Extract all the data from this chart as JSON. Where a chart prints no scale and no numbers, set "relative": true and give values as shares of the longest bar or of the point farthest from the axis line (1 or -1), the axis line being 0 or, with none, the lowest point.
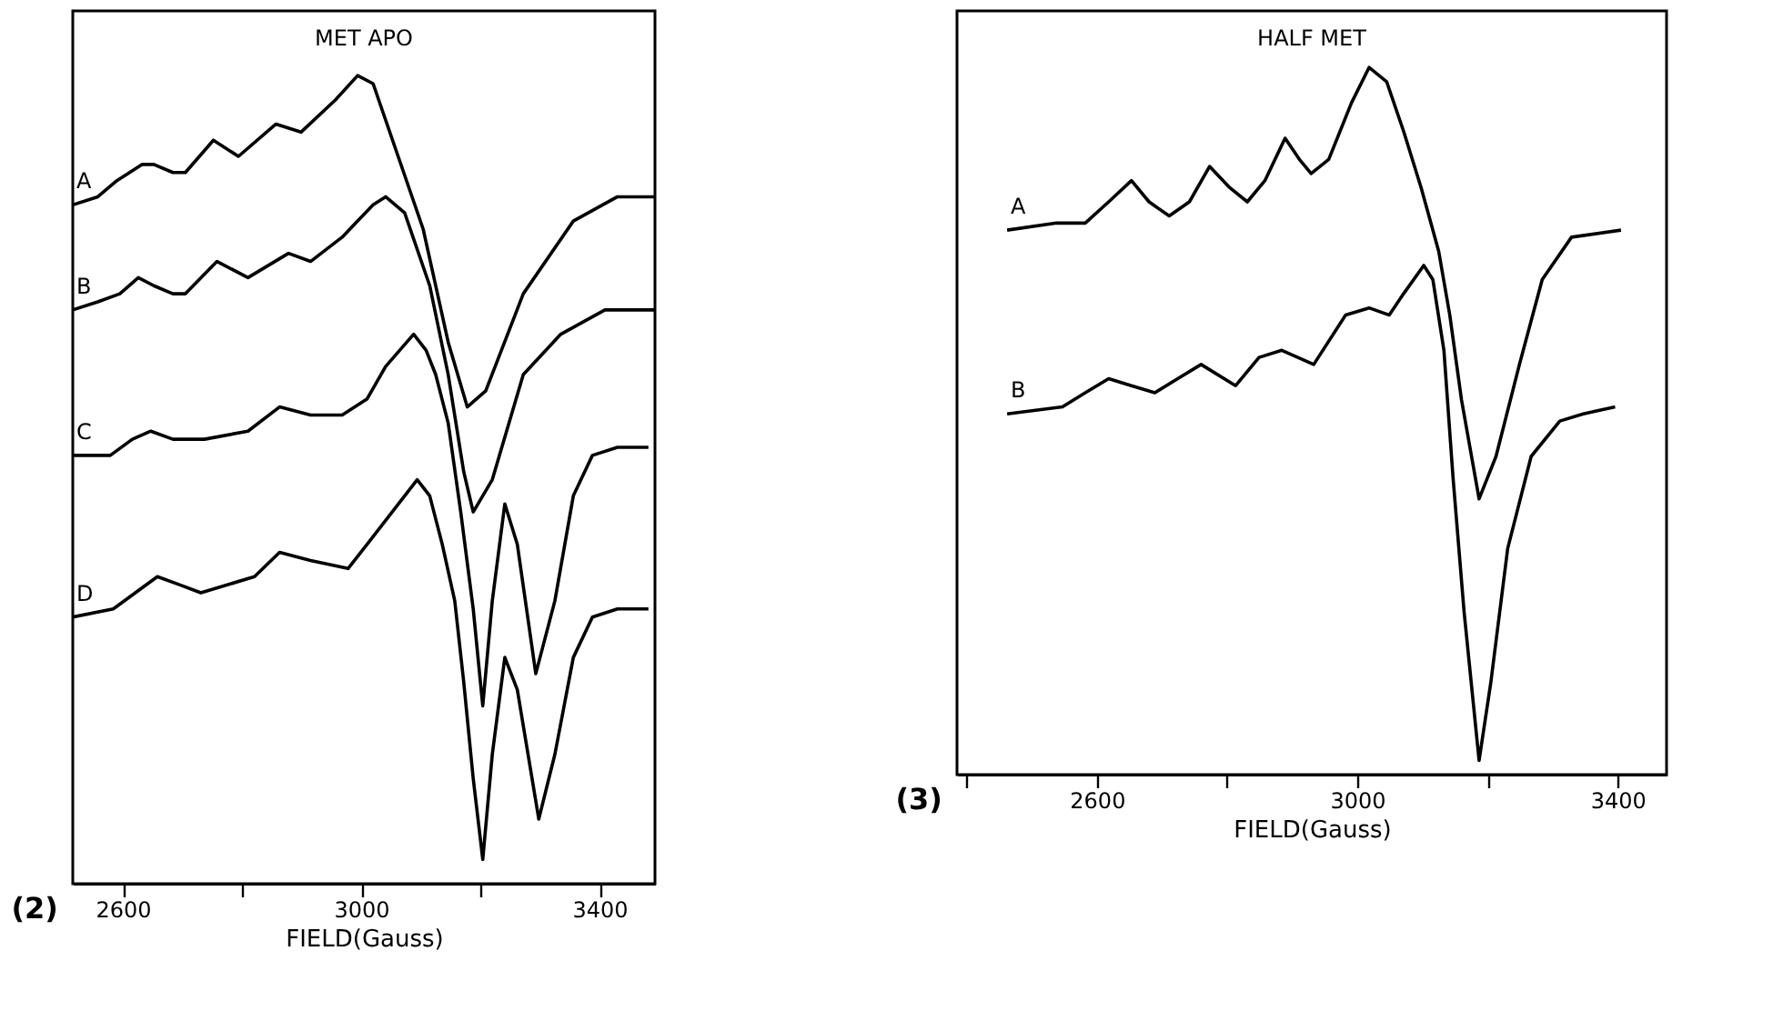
{
  "chart_data": [
    {
      "type": "line",
      "title": "MET APO",
      "xlabel": "FIELD(Gauss)",
      "relative": true,
      "xlim": [
        2516,
        3493
      ],
      "xticks": [
        2600,
        {
          "value": 2800,
          "label": null
        },
        3000,
        {
          "value": 3200,
          "label": null
        },
        3400
      ],
      "annotations": [
        "(2)"
      ],
      "series": [
        {
          "name": "A",
          "color": "#000000",
          "x": [
            2516,
            2558,
            2590,
            2632,
            2652,
            2684,
            2705,
            2752,
            2794,
            2857,
            2899,
            2957,
            2994,
            3020,
            3062,
            3104,
            3146,
            3178,
            3209,
            3272,
            3356,
            3430,
            3493
          ],
          "values": [
            0.84,
            0.85,
            0.87,
            0.89,
            0.89,
            0.88,
            0.88,
            0.92,
            0.9,
            0.94,
            0.93,
            0.97,
            1.0,
            0.99,
            0.9,
            0.81,
            0.67,
            0.59,
            0.61,
            0.73,
            0.82,
            0.85,
            0.85
          ]
        },
        {
          "name": "B",
          "color": "#000000",
          "x": [
            2516,
            2558,
            2595,
            2626,
            2652,
            2684,
            2705,
            2758,
            2810,
            2878,
            2915,
            2968,
            3020,
            3041,
            3073,
            3115,
            3146,
            3172,
            3188,
            3220,
            3272,
            3335,
            3409,
            3493
          ],
          "values": [
            0.71,
            0.72,
            0.73,
            0.75,
            0.74,
            0.73,
            0.73,
            0.77,
            0.75,
            0.78,
            0.77,
            0.8,
            0.84,
            0.85,
            0.83,
            0.74,
            0.63,
            0.51,
            0.46,
            0.5,
            0.63,
            0.68,
            0.71,
            0.71
          ]
        },
        {
          "name": "C",
          "color": "#000000",
          "x": [
            2516,
            2579,
            2616,
            2647,
            2684,
            2737,
            2810,
            2863,
            2915,
            2968,
            3010,
            3041,
            3088,
            3109,
            3125,
            3146,
            3167,
            3188,
            3204,
            3220,
            3241,
            3262,
            3293,
            3325,
            3356,
            3388,
            3430,
            3482
          ],
          "values": [
            0.53,
            0.53,
            0.55,
            0.56,
            0.55,
            0.55,
            0.56,
            0.59,
            0.58,
            0.58,
            0.6,
            0.64,
            0.68,
            0.66,
            0.63,
            0.57,
            0.46,
            0.34,
            0.22,
            0.35,
            0.47,
            0.42,
            0.26,
            0.35,
            0.48,
            0.53,
            0.54,
            0.54
          ]
        },
        {
          "name": "D",
          "color": "#000000",
          "x": [
            2516,
            2584,
            2621,
            2658,
            2695,
            2731,
            2821,
            2863,
            2915,
            2978,
            3010,
            3052,
            3094,
            3115,
            3136,
            3157,
            3172,
            3188,
            3204,
            3220,
            3241,
            3262,
            3298,
            3325,
            3356,
            3388,
            3430,
            3482
          ],
          "values": [
            0.33,
            0.34,
            0.36,
            0.38,
            0.37,
            0.36,
            0.38,
            0.41,
            0.4,
            0.39,
            0.42,
            0.46,
            0.5,
            0.48,
            0.42,
            0.35,
            0.25,
            0.13,
            0.03,
            0.16,
            0.28,
            0.24,
            0.08,
            0.16,
            0.28,
            0.33,
            0.34,
            0.34
          ]
        }
      ]
    },
    {
      "type": "line",
      "title": "HALF MET",
      "xlabel": "FIELD(Gauss)",
      "relative": true,
      "xlim": [
        2385,
        3475
      ],
      "xticks": [
        {
          "value": 2400,
          "label": null
        },
        2600,
        {
          "value": 2800,
          "label": null
        },
        3000,
        {
          "value": 3200,
          "label": null
        },
        3400
      ],
      "annotations": [
        "(3)"
      ],
      "series": [
        {
          "name": "A",
          "color": "#000000",
          "x": [
            2462,
            2538,
            2582,
            2618,
            2653,
            2680,
            2711,
            2742,
            2773,
            2804,
            2831,
            2858,
            2889,
            2911,
            2929,
            2956,
            2991,
            3018,
            3045,
            3071,
            3098,
            3125,
            3142,
            3160,
            3187,
            3213,
            3249,
            3284,
            3329,
            3405
          ],
          "values": [
            0.77,
            0.78,
            0.78,
            0.81,
            0.84,
            0.81,
            0.79,
            0.81,
            0.86,
            0.83,
            0.81,
            0.84,
            0.9,
            0.87,
            0.85,
            0.87,
            0.95,
            1.0,
            0.98,
            0.91,
            0.83,
            0.74,
            0.65,
            0.53,
            0.39,
            0.45,
            0.58,
            0.7,
            0.76,
            0.77
          ]
        },
        {
          "name": "B",
          "color": "#000000",
          "x": [
            2462,
            2547,
            2582,
            2618,
            2653,
            2689,
            2724,
            2760,
            2813,
            2849,
            2884,
            2933,
            2982,
            3018,
            3049,
            3071,
            3102,
            3116,
            3133,
            3147,
            3164,
            3187,
            3205,
            3231,
            3267,
            3311,
            3347,
            3396
          ],
          "values": [
            0.51,
            0.52,
            0.54,
            0.56,
            0.55,
            0.54,
            0.56,
            0.58,
            0.55,
            0.59,
            0.6,
            0.58,
            0.65,
            0.66,
            0.65,
            0.68,
            0.72,
            0.7,
            0.6,
            0.42,
            0.23,
            0.02,
            0.13,
            0.32,
            0.45,
            0.5,
            0.51,
            0.52
          ]
        }
      ]
    }
  ]
}
